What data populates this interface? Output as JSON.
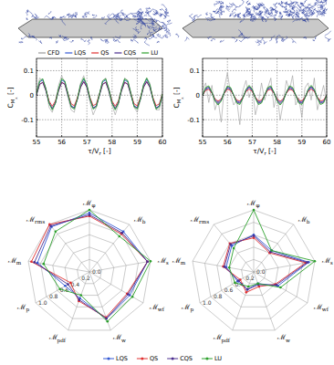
{
  "chart_data": [
    {
      "type": "line",
      "xlabel": "τ/Vr [-]",
      "ylabel": "CMx [-]",
      "grid": true,
      "legend": "top",
      "xlim": [
        55,
        60
      ],
      "ylim": [
        -0.17,
        0.15
      ],
      "xticks": [
        55,
        56,
        57,
        58,
        59,
        60
      ],
      "yticks": [
        -0.1,
        0,
        0.1
      ],
      "x": [
        55,
        55.125,
        55.25,
        55.375,
        55.5,
        55.625,
        55.75,
        55.875,
        56,
        56.125,
        56.25,
        56.375,
        56.5,
        56.625,
        56.75,
        56.875,
        57,
        57.125,
        57.25,
        57.375,
        57.5,
        57.625,
        57.75,
        57.875,
        58,
        58.125,
        58.25,
        58.375,
        58.5,
        58.625,
        58.75,
        58.875,
        59,
        59.125,
        59.25,
        59.375,
        59.5,
        59.625,
        59.75,
        59.875,
        60
      ],
      "series": [
        {
          "name": "CFD",
          "color": "#9a9a9a",
          "values": [
            0.01,
            0.07,
            0.06,
            0.03,
            -0.05,
            -0.07,
            -0.03,
            0.04,
            0.08,
            0.05,
            -0.01,
            -0.06,
            -0.07,
            -0.01,
            0.05,
            0.08,
            0.03,
            -0.03,
            -0.08,
            -0.05,
            0.0,
            0.06,
            0.07,
            0.01,
            -0.04,
            -0.08,
            -0.04,
            0.03,
            0.07,
            0.06,
            0.01,
            -0.05,
            -0.07,
            -0.02,
            0.04,
            0.07,
            0.05,
            -0.02,
            -0.06,
            -0.06,
            0.01
          ]
        },
        {
          "name": "LQS",
          "color": "#3358d4",
          "values": [
            0.005,
            0.054,
            0.062,
            0.024,
            -0.03,
            -0.055,
            -0.03,
            0.024,
            0.062,
            0.054,
            0.005,
            -0.044,
            -0.052,
            -0.014,
            0.04,
            0.065,
            0.04,
            -0.014,
            -0.052,
            -0.044,
            0.005,
            0.054,
            0.062,
            0.024,
            -0.03,
            -0.055,
            -0.03,
            0.024,
            0.062,
            0.054,
            0.005,
            -0.044,
            -0.052,
            -0.014,
            0.04,
            0.065,
            0.04,
            -0.014,
            -0.052,
            -0.044,
            0.005
          ]
        },
        {
          "name": "QS",
          "color": "#e03030",
          "values": [
            0.005,
            0.045,
            0.053,
            0.02,
            -0.024,
            -0.045,
            -0.024,
            0.02,
            0.053,
            0.045,
            0.005,
            -0.035,
            -0.043,
            -0.01,
            0.034,
            0.055,
            0.034,
            -0.01,
            -0.043,
            -0.035,
            0.005,
            0.045,
            0.053,
            0.02,
            -0.024,
            -0.045,
            -0.024,
            0.02,
            0.053,
            0.045,
            0.005,
            -0.035,
            -0.043,
            -0.01,
            0.034,
            0.055,
            0.034,
            -0.01,
            -0.043,
            -0.035,
            0.005
          ]
        },
        {
          "name": "CQS",
          "color": "#4b2d8f",
          "values": [
            0,
            0.044,
            0.052,
            0.017,
            -0.032,
            -0.055,
            -0.032,
            0.017,
            0.052,
            0.044,
            0,
            -0.044,
            -0.052,
            -0.017,
            0.032,
            0.055,
            0.032,
            -0.017,
            -0.052,
            -0.044,
            0,
            0.044,
            0.052,
            0.017,
            -0.032,
            -0.055,
            -0.032,
            0.017,
            0.052,
            0.044,
            0,
            -0.044,
            -0.052,
            -0.017,
            0.032,
            0.055,
            0.032,
            -0.017,
            -0.052,
            -0.044,
            0
          ]
        },
        {
          "name": "LU",
          "color": "#2ca02c",
          "values": [
            0.005,
            0.058,
            0.067,
            0.025,
            -0.033,
            -0.06,
            -0.033,
            0.025,
            0.067,
            0.058,
            0.005,
            -0.048,
            -0.057,
            -0.015,
            0.043,
            0.07,
            0.043,
            -0.015,
            -0.057,
            -0.048,
            0.005,
            0.058,
            0.067,
            0.025,
            -0.033,
            -0.06,
            -0.033,
            0.025,
            0.067,
            0.058,
            0.005,
            -0.048,
            -0.057,
            -0.015,
            0.043,
            0.07,
            0.043,
            -0.015,
            -0.057,
            -0.048,
            0.005
          ]
        }
      ]
    },
    {
      "type": "line",
      "xlabel": "τ/Vr [-]",
      "ylabel": "CMx [-]",
      "grid": true,
      "xlim": [
        55,
        60
      ],
      "ylim": [
        -0.17,
        0.15
      ],
      "xticks": [
        55,
        56,
        57,
        58,
        59,
        60
      ],
      "yticks": [
        -0.1,
        0,
        0.1
      ],
      "x": [
        55,
        55.125,
        55.25,
        55.375,
        55.5,
        55.625,
        55.75,
        55.875,
        56,
        56.125,
        56.25,
        56.375,
        56.5,
        56.625,
        56.75,
        56.875,
        57,
        57.125,
        57.25,
        57.375,
        57.5,
        57.625,
        57.75,
        57.875,
        58,
        58.125,
        58.25,
        58.375,
        58.5,
        58.625,
        58.75,
        58.875,
        59,
        59.125,
        59.25,
        59.375,
        59.5,
        59.625,
        59.75,
        59.875,
        60
      ],
      "series": [
        {
          "name": "CFD",
          "color": "#9a9a9a",
          "values": [
            0.02,
            0.05,
            -0.03,
            0.04,
            -0.06,
            -0.02,
            -0.11,
            0.03,
            0.09,
            0.01,
            -0.04,
            -0.02,
            -0.12,
            0.02,
            0.06,
            -0.01,
            0.04,
            -0.08,
            -0.03,
            0.05,
            -0.02,
            0.03,
            0.07,
            -0.05,
            0.01,
            -0.1,
            -0.03,
            0.06,
            0.02,
            0.08,
            -0.04,
            -0.01,
            -0.09,
            0.03,
            0.05,
            -0.02,
            0.07,
            -0.06,
            -0.01,
            0.04,
            -0.03
          ]
        },
        {
          "name": "LQS",
          "color": "#3358d4",
          "values": [
            0,
            0.024,
            0.029,
            0.009,
            -0.018,
            -0.03,
            -0.018,
            0.009,
            0.029,
            0.024,
            0,
            -0.024,
            -0.029,
            -0.009,
            0.018,
            0.03,
            0.018,
            -0.009,
            -0.029,
            -0.024,
            0,
            0.024,
            0.029,
            0.009,
            -0.018,
            -0.03,
            -0.018,
            0.009,
            0.029,
            0.024,
            0,
            -0.024,
            -0.029,
            -0.009,
            0.018,
            0.03,
            0.018,
            -0.009,
            -0.029,
            -0.024,
            0
          ]
        },
        {
          "name": "QS",
          "color": "#e03030",
          "values": [
            0,
            0.02,
            0.024,
            0.008,
            -0.015,
            -0.025,
            -0.015,
            0.008,
            0.024,
            0.02,
            0,
            -0.02,
            -0.024,
            -0.008,
            0.015,
            0.025,
            0.015,
            -0.008,
            -0.024,
            -0.02,
            0,
            0.02,
            0.024,
            0.008,
            -0.015,
            -0.025,
            -0.015,
            0.008,
            0.024,
            0.02,
            0,
            -0.02,
            -0.024,
            -0.008,
            0.015,
            0.025,
            0.015,
            -0.008,
            -0.024,
            -0.02,
            0
          ]
        },
        {
          "name": "CQS",
          "color": "#4b2d8f",
          "values": [
            0,
            0.028,
            0.033,
            0.011,
            -0.021,
            -0.035,
            -0.021,
            0.011,
            0.033,
            0.028,
            0,
            -0.028,
            -0.033,
            -0.011,
            0.021,
            0.035,
            0.021,
            -0.011,
            -0.033,
            -0.028,
            0,
            0.028,
            0.033,
            0.011,
            -0.021,
            -0.035,
            -0.021,
            0.011,
            0.033,
            0.028,
            0,
            -0.028,
            -0.033,
            -0.011,
            0.021,
            0.035,
            0.021,
            -0.011,
            -0.033,
            -0.028,
            0
          ]
        },
        {
          "name": "LU",
          "color": "#2ca02c",
          "values": [
            0,
            0.032,
            0.038,
            0.012,
            -0.024,
            -0.04,
            -0.024,
            0.012,
            0.038,
            0.032,
            0,
            -0.032,
            -0.038,
            -0.012,
            0.024,
            0.04,
            0.024,
            -0.012,
            -0.038,
            -0.032,
            0,
            0.032,
            0.038,
            0.012,
            -0.024,
            -0.04,
            -0.024,
            0.012,
            0.038,
            0.032,
            0,
            -0.032,
            -0.038,
            -0.012,
            0.024,
            0.04,
            0.024,
            -0.012,
            -0.038,
            -0.032,
            0
          ]
        }
      ]
    },
    {
      "type": "radar",
      "grid": true,
      "legend": "bottom",
      "categories": [
        "ℳφ",
        "ℳb",
        "ℳs",
        "ℳwf",
        "ℳw",
        "ℳpdf",
        "ℳp",
        "ℳm",
        "ℳrms"
      ],
      "rlim": [
        0,
        1
      ],
      "rticks": [
        {
          "value": 0,
          "label": "0.0"
        },
        0.2,
        0.4,
        0.6,
        0.8,
        {
          "value": 1,
          "label": "1.0"
        }
      ],
      "series": [
        {
          "name": "LQS",
          "color": "#3358d4",
          "marker": "circle",
          "values": [
            0.95,
            0.85,
            0.95,
            0.75,
            0.8,
            0.45,
            0.45,
            0.85,
            0.95
          ]
        },
        {
          "name": "QS",
          "color": "#e03030",
          "marker": "circle",
          "values": [
            0.9,
            0.8,
            0.95,
            0.7,
            0.78,
            0.5,
            0.35,
            0.95,
            1.0
          ]
        },
        {
          "name": "CQS",
          "color": "#4b2d8f",
          "marker": "circle",
          "values": [
            0.92,
            0.82,
            0.95,
            0.72,
            0.8,
            0.48,
            0.4,
            0.9,
            0.97
          ]
        },
        {
          "name": "LU",
          "color": "#2ca02c",
          "marker": "circle",
          "values": [
            1.0,
            0.75,
            1.0,
            0.8,
            0.85,
            0.4,
            0.55,
            0.75,
            0.85
          ]
        }
      ]
    },
    {
      "type": "radar",
      "grid": true,
      "categories": [
        "ℳφ",
        "ℳb",
        "ℳs",
        "ℳwf",
        "ℳw",
        "ℳpdf",
        "ℳp",
        "ℳm",
        "ℳrms"
      ],
      "rlim": [
        0,
        1
      ],
      "rticks": [
        {
          "value": 0,
          "label": "0.0"
        },
        0.2,
        0.4,
        0.6,
        0.8,
        {
          "value": 1,
          "label": "1.0"
        }
      ],
      "series": [
        {
          "name": "LQS",
          "color": "#3358d4",
          "marker": "circle",
          "values": [
            0.6,
            0.45,
            0.9,
            0.45,
            0.2,
            0.3,
            0.3,
            0.45,
            0.55
          ]
        },
        {
          "name": "QS",
          "color": "#e03030",
          "marker": "circle",
          "values": [
            0.55,
            0.4,
            0.85,
            0.4,
            0.25,
            0.35,
            0.25,
            0.5,
            0.6
          ]
        },
        {
          "name": "CQS",
          "color": "#4b2d8f",
          "marker": "circle",
          "values": [
            0.58,
            0.42,
            0.88,
            0.42,
            0.22,
            0.3,
            0.28,
            0.48,
            0.58
          ]
        },
        {
          "name": "LU",
          "color": "#2ca02c",
          "marker": "circle",
          "values": [
            1.0,
            0.45,
            1.0,
            0.5,
            0.2,
            0.25,
            0.35,
            0.4,
            0.5
          ]
        }
      ]
    }
  ]
}
